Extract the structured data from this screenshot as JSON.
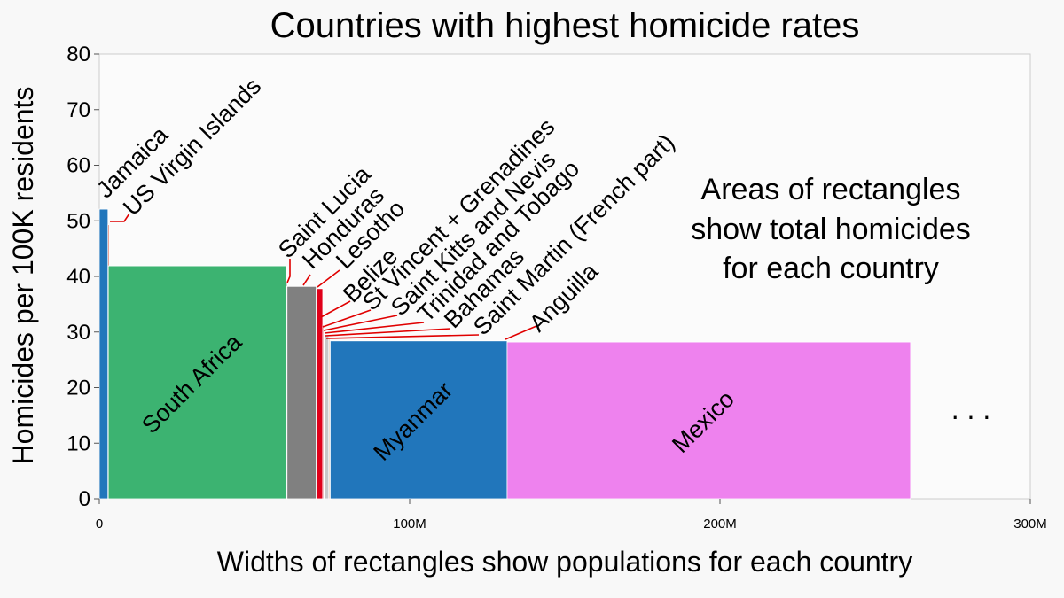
{
  "chart_data": {
    "type": "bar",
    "title": "Countries with highest homicide rates",
    "ylabel": "Homicides per 100K residents",
    "xlabel": "Widths of rectangles show populations for each country",
    "ylim": [
      0,
      80
    ],
    "xlim": [
      0,
      300
    ],
    "x_unit": "millions of residents",
    "y_ticks": [
      "0",
      "10",
      "20",
      "30",
      "40",
      "50",
      "60",
      "70",
      "80"
    ],
    "x_ticks": [
      {
        "value": 0,
        "label": "0"
      },
      {
        "value": 100,
        "label": "100M"
      },
      {
        "value": 200,
        "label": "200M"
      },
      {
        "value": 300,
        "label": "300M"
      }
    ],
    "grid": false,
    "note": [
      "Areas of rectangles",
      "show total homicides",
      "for each country"
    ],
    "continuation": ". . .",
    "series": [
      {
        "country": "Jamaica",
        "rate": 52.1,
        "population": 2.8,
        "color": "#2176bb",
        "label": "outside"
      },
      {
        "country": "US Virgin Islands",
        "rate": 49.3,
        "population": 0.1,
        "color": "#cc2200",
        "label": "outside"
      },
      {
        "country": "South Africa",
        "rate": 41.9,
        "population": 57.4,
        "color": "#3cb371",
        "label": "inside"
      },
      {
        "country": "Saint Lucia",
        "rate": 38.9,
        "population": 0.2,
        "color": "#888888",
        "label": "outside"
      },
      {
        "country": "Honduras",
        "rate": 38.2,
        "population": 9.4,
        "color": "#808080",
        "label": "outside"
      },
      {
        "country": "Lesotho",
        "rate": 37.8,
        "population": 2.1,
        "color": "#e0001a",
        "label": "outside"
      },
      {
        "country": "Belize",
        "rate": 31.3,
        "population": 0.4,
        "color": "#e89a9a",
        "label": "outside"
      },
      {
        "country": "St Vincent + Grenadines",
        "rate": 30.5,
        "population": 0.1,
        "color": "#d0d0d0",
        "label": "outside"
      },
      {
        "country": "Saint Kitts and Nevis",
        "rate": 30.0,
        "population": 0.05,
        "color": "#d0d0d0",
        "label": "outside"
      },
      {
        "country": "Trinidad and Tobago",
        "rate": 29.4,
        "population": 1.4,
        "color": "#c8c8c8",
        "label": "outside"
      },
      {
        "country": "Bahamas",
        "rate": 29.0,
        "population": 0.4,
        "color": "#e8c0a0",
        "label": "outside"
      },
      {
        "country": "Saint Martin (French part)",
        "rate": 28.8,
        "population": 0.04,
        "color": "#d0d0d0",
        "label": "outside"
      },
      {
        "country": "Anguilla",
        "rate": 28.6,
        "population": 0.02,
        "color": "#d0d0d0",
        "label": "outside"
      },
      {
        "country": "Myanmar",
        "rate": 28.4,
        "population": 57.0,
        "color": "#2176bb",
        "label": "inside"
      },
      {
        "country": "Mexico",
        "rate": 28.2,
        "population": 130.0,
        "color": "#ee82ee",
        "label": "inside"
      }
    ]
  }
}
